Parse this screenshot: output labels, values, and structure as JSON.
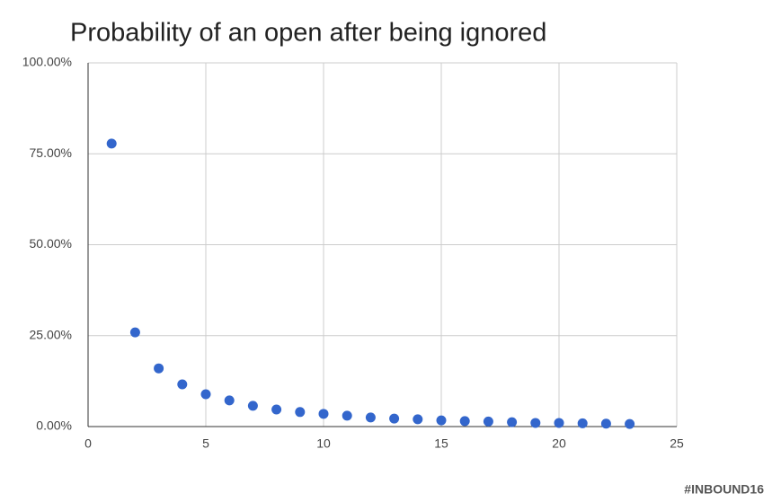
{
  "chart_data": {
    "type": "scatter",
    "title": "Probability of an open after being ignored",
    "annotation": "#INBOUND16",
    "x": [
      1,
      2,
      3,
      4,
      5,
      6,
      7,
      8,
      9,
      10,
      11,
      12,
      13,
      14,
      15,
      16,
      17,
      18,
      19,
      20,
      21,
      22,
      23
    ],
    "values": [
      77.8,
      25.9,
      16.0,
      11.6,
      8.9,
      7.2,
      5.7,
      4.7,
      4.0,
      3.5,
      3.0,
      2.5,
      2.2,
      2.0,
      1.7,
      1.5,
      1.4,
      1.2,
      1.0,
      1.0,
      0.9,
      0.8,
      0.7
    ],
    "color": "#3366cc",
    "xlim": [
      0,
      25
    ],
    "xticks": [
      0,
      5,
      10,
      15,
      20,
      25
    ],
    "ylim": [
      0,
      100
    ],
    "yticks": [
      {
        "value": 0,
        "label": "0.00%"
      },
      {
        "value": 25,
        "label": "25.00%"
      },
      {
        "value": 50,
        "label": "50.00%"
      },
      {
        "value": 75,
        "label": "75.00%"
      },
      {
        "value": 100,
        "label": "100.00%"
      }
    ],
    "grid": true
  }
}
